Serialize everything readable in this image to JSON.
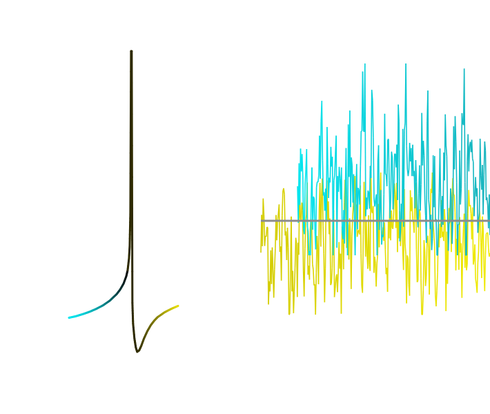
{
  "colors": {
    "background": "#ffffff",
    "cyan": "#00e5ee",
    "teal": "#17b3bd",
    "yellow": "#e0d800",
    "dark": "#2e2a00",
    "baseline": "#8c8c8c"
  },
  "chart_data": [
    {
      "type": "line",
      "description_visible_text": "",
      "title": "",
      "xlabel": "",
      "ylabel": "",
      "grid": false,
      "legend": "none",
      "color_gradient": [
        "#00e5ee",
        "#000000",
        "#e0d800"
      ],
      "series": [
        {
          "x": [
            0,
            10,
            20,
            30,
            40,
            50,
            60,
            70,
            75,
            80,
            84,
            86,
            88,
            89,
            90,
            91,
            92,
            93,
            94,
            96,
            98,
            100,
            103,
            106,
            110,
            115,
            120,
            125,
            130,
            140,
            150,
            160
          ],
          "y": [
            -60,
            -59.5,
            -58.8,
            -58,
            -57,
            -55.8,
            -54.2,
            -52,
            -50.5,
            -48.5,
            -46,
            -44,
            -40,
            -36,
            -25,
            30,
            30,
            -55,
            -62,
            -67,
            -70,
            -71.5,
            -71,
            -69.5,
            -67,
            -64.5,
            -62.5,
            -61,
            -59.8,
            -58.2,
            -57,
            -56
          ]
        }
      ]
    },
    {
      "type": "line",
      "title": "",
      "xlabel": "",
      "ylabel": "",
      "grid": false,
      "legend": "none",
      "baseline": 0,
      "series": [
        {
          "color": "cyan",
          "x_start": 0.16,
          "x_end": 1.0,
          "mean": 0.55,
          "noise": 0.55
        },
        {
          "color": "yellow",
          "x_start": 0.0,
          "x_end": 1.0,
          "mean": -0.3,
          "noise": 0.45
        }
      ]
    }
  ]
}
